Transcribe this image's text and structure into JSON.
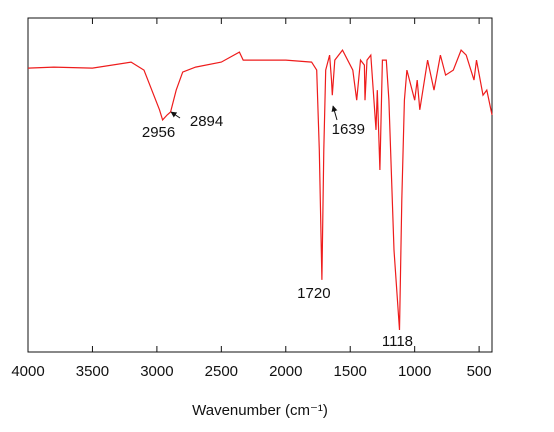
{
  "chart_data": {
    "type": "line",
    "xlabel": "Wavenumber (cm⁻¹)",
    "xlim": [
      4000,
      400
    ],
    "ylim": [
      0,
      100
    ],
    "xticks": [
      4000,
      3500,
      3000,
      2500,
      2000,
      1500,
      1000,
      500
    ],
    "series": [
      {
        "color": "#ee1c1c",
        "x": [
          4000,
          3800,
          3500,
          3200,
          3100,
          2980,
          2956,
          2920,
          2894,
          2850,
          2800,
          2700,
          2500,
          2360,
          2330,
          2000,
          1800,
          1760,
          1740,
          1720,
          1705,
          1690,
          1660,
          1645,
          1639,
          1620,
          1560,
          1480,
          1450,
          1420,
          1390,
          1385,
          1370,
          1340,
          1300,
          1290,
          1270,
          1250,
          1220,
          1200,
          1160,
          1118,
          1100,
          1080,
          1060,
          1000,
          980,
          960,
          900,
          850,
          800,
          760,
          700,
          640,
          600,
          540,
          520,
          470,
          440,
          400
        ],
        "values": [
          85.0,
          85.3,
          85.0,
          86.8,
          84.4,
          72.5,
          69.5,
          71.0,
          71.9,
          78.4,
          83.8,
          85.3,
          86.8,
          89.8,
          87.4,
          87.4,
          86.8,
          84.4,
          60.5,
          21.6,
          60.5,
          84.4,
          88.9,
          81.4,
          76.9,
          87.4,
          90.4,
          84.4,
          75.4,
          87.4,
          85.9,
          75.4,
          87.4,
          88.9,
          66.5,
          78.4,
          54.5,
          87.4,
          87.4,
          75.4,
          30.5,
          6.6,
          45.5,
          75.4,
          84.4,
          75.4,
          81.4,
          72.5,
          87.4,
          78.4,
          88.9,
          82.9,
          84.4,
          90.4,
          88.9,
          81.4,
          87.4,
          76.9,
          78.4,
          71.0
        ]
      }
    ],
    "annotations": [
      {
        "text": "2956",
        "x": 2956
      },
      {
        "text": "2894",
        "x": 2894
      },
      {
        "text": "1639",
        "x": 1639
      },
      {
        "text": "1720",
        "x": 1720
      },
      {
        "text": "1118",
        "x": 1118
      }
    ]
  }
}
